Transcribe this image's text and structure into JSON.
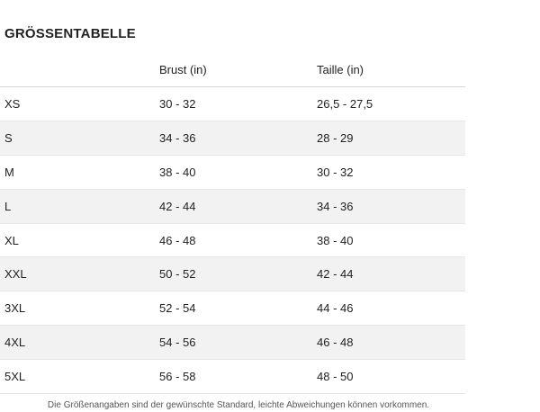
{
  "title": "GRÖSSENTABELLE",
  "table": {
    "headers": [
      "Brust (in)",
      "Taille (in)"
    ],
    "rows": [
      [
        "XS",
        "30 - 32",
        "26,5 - 27,5"
      ],
      [
        "S",
        "34 - 36",
        "28 - 29"
      ],
      [
        "M",
        "38 - 40",
        "30 - 32"
      ],
      [
        "L",
        "42 - 44",
        "34 - 36"
      ],
      [
        "XL",
        "46 - 48",
        "38 - 40"
      ],
      [
        "XXL",
        "50 - 52",
        "42 - 44"
      ],
      [
        "3XL",
        "52 - 54",
        "44 - 46"
      ],
      [
        "4XL",
        "54 - 56",
        "46 - 48"
      ],
      [
        "5XL",
        "56 - 58",
        "48 - 50"
      ]
    ]
  },
  "footnote": "Die Größenangaben sind der gewünschte Standard, leichte Abweichungen können vorkommen."
}
